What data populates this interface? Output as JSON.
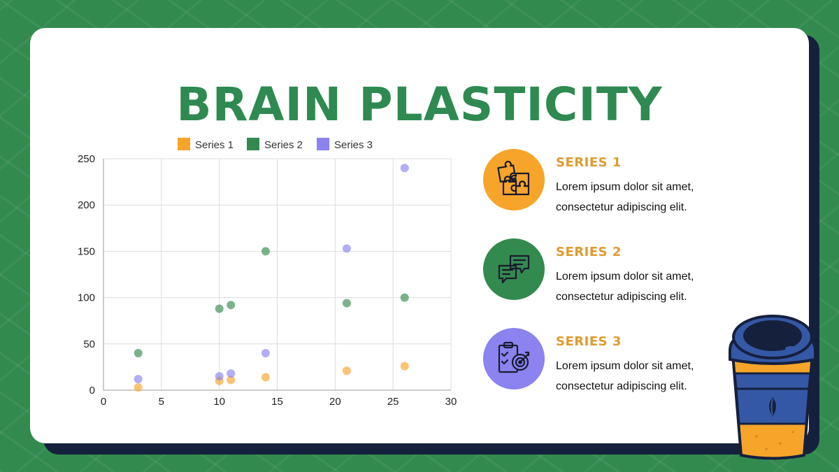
{
  "title": "BRAIN PLASTICITY",
  "colors": {
    "background": "#338a4f",
    "card": "#ffffff",
    "title": "#2e8a50",
    "series1": "#f6a52a",
    "series2": "#338a4f",
    "series3": "#8a83f0",
    "item_title": "#df9a2f"
  },
  "chart_data": {
    "type": "scatter",
    "legend_position": "top",
    "grid": true,
    "xlim": [
      0,
      30
    ],
    "ylim": [
      0,
      250
    ],
    "x_ticks": [
      0,
      5,
      10,
      15,
      20,
      25,
      30
    ],
    "y_ticks": [
      0,
      50,
      100,
      150,
      200,
      250
    ],
    "series": [
      {
        "name": "Series 1",
        "color": "#f6a52a",
        "points": [
          [
            3,
            3
          ],
          [
            10,
            10
          ],
          [
            11,
            11
          ],
          [
            14,
            14
          ],
          [
            21,
            21
          ],
          [
            26,
            26
          ]
        ]
      },
      {
        "name": "Series 2",
        "color": "#338a4f",
        "points": [
          [
            3,
            40
          ],
          [
            10,
            88
          ],
          [
            11,
            92
          ],
          [
            14,
            150
          ],
          [
            21,
            94
          ],
          [
            26,
            100
          ]
        ]
      },
      {
        "name": "Series 3",
        "color": "#8a83f0",
        "points": [
          [
            3,
            12
          ],
          [
            10,
            15
          ],
          [
            11,
            18
          ],
          [
            14,
            40
          ],
          [
            21,
            153
          ],
          [
            26,
            240
          ]
        ]
      }
    ]
  },
  "items": [
    {
      "title": "SERIES 1",
      "desc": "Lorem ipsum dolor sit amet, consectetur adipiscing elit.",
      "icon": "puzzle-icon",
      "color": "#f6a52a"
    },
    {
      "title": "SERIES 2",
      "desc": "Lorem ipsum dolor sit amet, consectetur adipiscing elit.",
      "icon": "chat-bubbles-icon",
      "color": "#338a4f"
    },
    {
      "title": "SERIES 3",
      "desc": "Lorem ipsum dolor sit amet, consectetur adipiscing elit.",
      "icon": "target-clipboard-icon",
      "color": "#8a83f0"
    }
  ],
  "decoration": {
    "icon": "coffee-cup-icon"
  }
}
